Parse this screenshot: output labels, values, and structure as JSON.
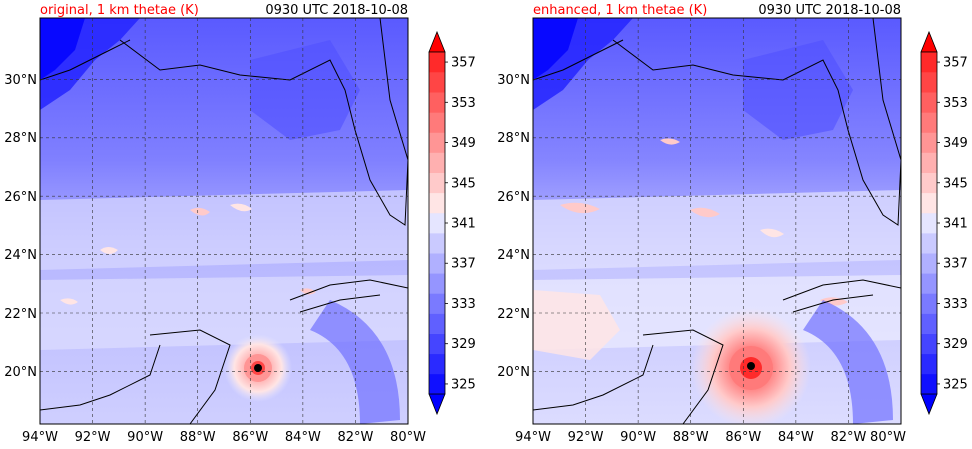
{
  "panels": [
    {
      "title": "original, 1 km thetae (K)",
      "time": "0930 UTC 2018-10-08",
      "title_color": "#ff0000"
    },
    {
      "title": "enhanced, 1 km thetae (K)",
      "time": "0930 UTC 2018-10-08",
      "title_color": "#ff0000"
    }
  ],
  "axes": {
    "lon_ticks": [
      "94°W",
      "92°W",
      "90°W",
      "88°W",
      "86°W",
      "84°W",
      "82°W",
      "80°W"
    ],
    "lat_ticks": [
      "30°N",
      "28°N",
      "26°N",
      "24°N",
      "22°N",
      "20°N"
    ],
    "lon_values": [
      -94,
      -92,
      -90,
      -88,
      -86,
      -84,
      -82,
      -80
    ],
    "lat_values": [
      30,
      28,
      26,
      24,
      22,
      20
    ],
    "lon_range": [
      -94,
      -80
    ],
    "lat_range": [
      18.1,
      32.0
    ]
  },
  "colorbar": {
    "labels": [
      "357",
      "353",
      "349",
      "345",
      "341",
      "337",
      "333",
      "329",
      "325"
    ],
    "levels": [
      325,
      327,
      329,
      331,
      333,
      335,
      337,
      339,
      341,
      343,
      345,
      347,
      349,
      351,
      353,
      355,
      357
    ],
    "colors": [
      "#1010ff",
      "#2a2aff",
      "#4545ff",
      "#6060ff",
      "#7a7aff",
      "#9595ff",
      "#b0b0ff",
      "#cacaff",
      "#e5e5ff",
      "#ffe5e5",
      "#ffcaca",
      "#ffb0b0",
      "#ff9595",
      "#ff7a7a",
      "#ff6060",
      "#ff4545",
      "#ff2a2a"
    ],
    "under_color": "#0000ff",
    "over_color": "#ff0000"
  },
  "hurricane_center": {
    "lon": -85.8,
    "lat": 20.1
  }
}
